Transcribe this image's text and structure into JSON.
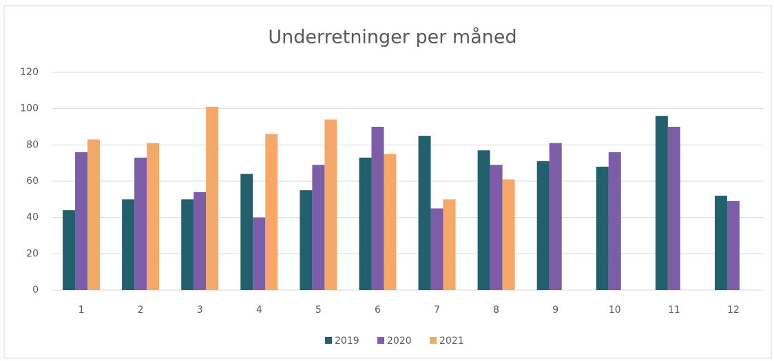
{
  "chart_data": {
    "type": "bar",
    "title": "Underretninger per måned",
    "categories": [
      "1",
      "2",
      "3",
      "4",
      "5",
      "6",
      "7",
      "8",
      "9",
      "10",
      "11",
      "12"
    ],
    "series": [
      {
        "name": "2019",
        "color": "#22606e",
        "values": [
          44,
          50,
          50,
          64,
          55,
          73,
          85,
          77,
          71,
          68,
          96,
          52
        ]
      },
      {
        "name": "2020",
        "color": "#7b5ea7",
        "values": [
          76,
          73,
          54,
          40,
          69,
          90,
          45,
          69,
          81,
          76,
          90,
          49
        ]
      },
      {
        "name": "2021",
        "color": "#f4a96a",
        "values": [
          83,
          81,
          101,
          86,
          94,
          75,
          50,
          61,
          null,
          null,
          null,
          null
        ]
      }
    ],
    "ylim": [
      0,
      120
    ],
    "yticks": [
      0,
      20,
      40,
      60,
      80,
      100,
      120
    ],
    "grid": true,
    "legend": "bottom"
  }
}
